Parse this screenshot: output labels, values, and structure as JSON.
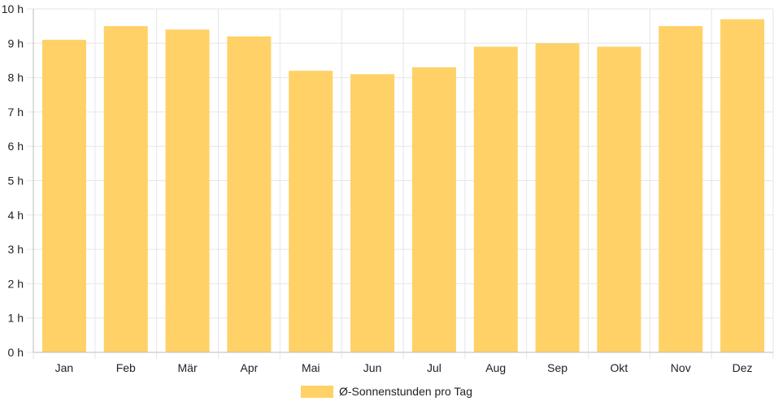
{
  "chart_data": {
    "type": "bar",
    "categories": [
      "Jan",
      "Feb",
      "Mär",
      "Apr",
      "Mai",
      "Jun",
      "Jul",
      "Aug",
      "Sep",
      "Okt",
      "Nov",
      "Dez"
    ],
    "series": [
      {
        "name": "Ø-Sonnenstunden pro Tag",
        "values": [
          9.1,
          9.5,
          9.4,
          9.2,
          8.2,
          8.1,
          8.3,
          8.9,
          9.0,
          8.9,
          9.5,
          9.7
        ],
        "color": "#FFD166"
      }
    ],
    "y_unit": "h",
    "ylim": [
      0,
      10
    ],
    "y_ticks": [
      0,
      1,
      2,
      3,
      4,
      5,
      6,
      7,
      8,
      9,
      10
    ],
    "grid": true,
    "legend_position": "bottom"
  },
  "colors": {
    "bar": "#FFD166",
    "grid": "#E6E6E6",
    "axis": "#BDBDBD",
    "text": "#222222"
  }
}
